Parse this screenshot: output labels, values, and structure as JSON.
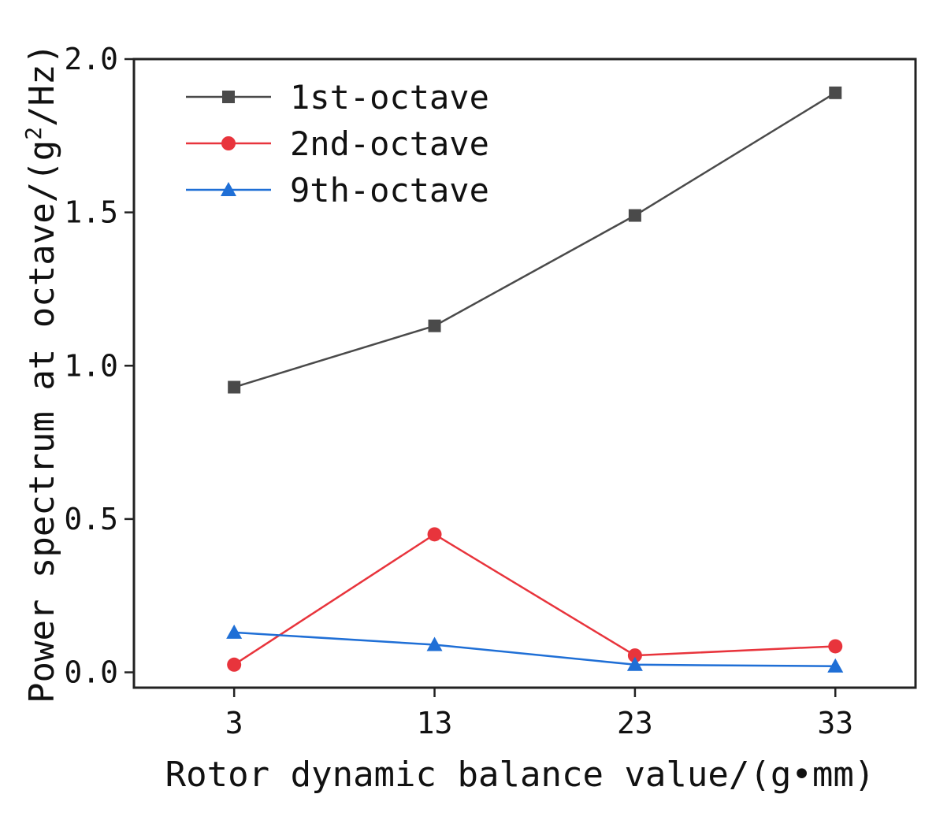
{
  "chart_data": {
    "type": "line",
    "categories": [
      "3",
      "13",
      "23",
      "33"
    ],
    "x": [
      3,
      13,
      23,
      33
    ],
    "xlabel": "Rotor dynamic balance value/(g•mm)",
    "ylabel_prefix": "Power spectrum at octave/(g",
    "ylabel_sup": "2",
    "ylabel_suffix": "/Hz)",
    "ylim": [
      -0.05,
      2.0
    ],
    "xlim": [
      -2,
      37
    ],
    "yticks": [
      0.0,
      0.5,
      1.0,
      1.5,
      2.0
    ],
    "ytick_labels": [
      "0.0",
      "0.5",
      "1.0",
      "1.5",
      "2.0"
    ],
    "legend_position": "top-left",
    "series": [
      {
        "name": "1st-octave",
        "marker": "square",
        "color": "#4a4a4a",
        "values": [
          0.93,
          1.13,
          1.49,
          1.89
        ]
      },
      {
        "name": "2nd-octave",
        "marker": "circle",
        "color": "#e8343c",
        "values": [
          0.025,
          0.45,
          0.055,
          0.085
        ]
      },
      {
        "name": "9th-octave",
        "marker": "triangle",
        "color": "#1f6fd6",
        "values": [
          0.13,
          0.09,
          0.025,
          0.02
        ]
      }
    ]
  }
}
